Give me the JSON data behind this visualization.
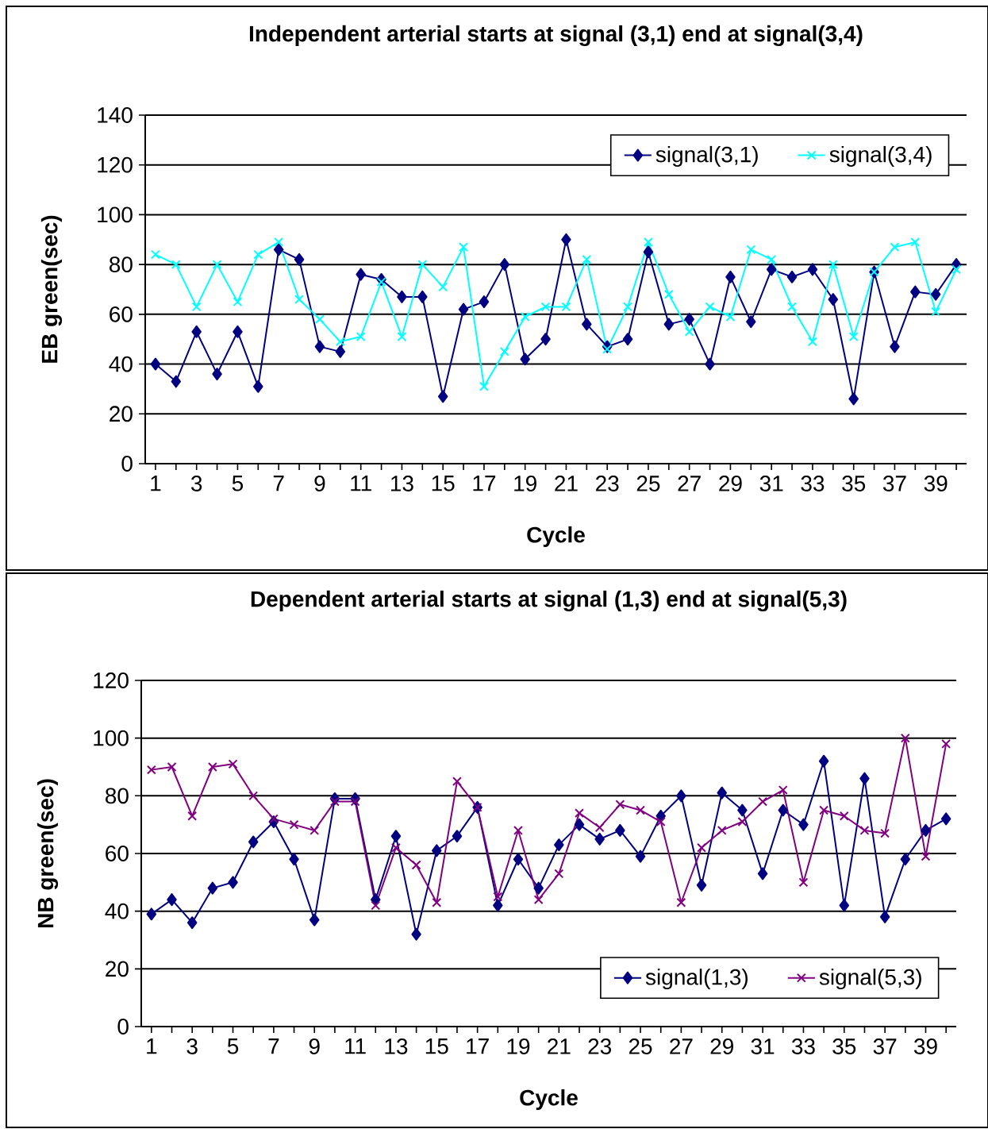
{
  "chart_data": [
    {
      "type": "line",
      "title": "Independent arterial starts at signal (3,1) end at signal(3,4)",
      "xlabel": "Cycle",
      "ylabel": "EB green(sec)",
      "categories": [
        "1",
        null,
        "3",
        null,
        "5",
        null,
        "7",
        null,
        "9",
        null,
        "11",
        null,
        "13",
        null,
        "15",
        null,
        "17",
        null,
        "19",
        null,
        "21",
        null,
        "23",
        null,
        "25",
        null,
        "27",
        null,
        "29",
        null,
        "31",
        null,
        "33",
        null,
        "35",
        null,
        "37",
        null,
        "39",
        null
      ],
      "series": [
        {
          "name": "signal(3,1)",
          "color": "#000080",
          "marker": "diamond",
          "values": [
            40,
            33,
            53,
            36,
            53,
            31,
            86,
            82,
            47,
            45,
            76,
            74,
            67,
            67,
            27,
            62,
            65,
            80,
            42,
            50,
            90,
            56,
            47,
            50,
            85,
            56,
            58,
            40,
            75,
            57,
            78,
            75,
            78,
            66,
            26,
            77,
            47,
            69,
            68,
            80
          ]
        },
        {
          "name": "signal(3,4)",
          "color": "#00ffff",
          "marker": "cross",
          "values": [
            84,
            80,
            63,
            80,
            65,
            84,
            89,
            66,
            58,
            49,
            51,
            73,
            51,
            80,
            71,
            87,
            31,
            45,
            59,
            63,
            63,
            82,
            46,
            63,
            89,
            68,
            53,
            63,
            59,
            86,
            82,
            63,
            49,
            80,
            51,
            77,
            87,
            89,
            61,
            78
          ]
        }
      ],
      "ylim": [
        0,
        140
      ],
      "yticks": [
        0,
        20,
        40,
        60,
        80,
        100,
        120,
        140
      ],
      "grid": "y",
      "legend": "top right"
    },
    {
      "type": "line",
      "title": "Dependent arterial starts at signal (1,3) end at signal(5,3)",
      "xlabel": "Cycle",
      "ylabel": "NB green(sec)",
      "categories": [
        "1",
        null,
        "3",
        null,
        "5",
        null,
        "7",
        null,
        "9",
        null,
        "11",
        null,
        "13",
        null,
        "15",
        null,
        "17",
        null,
        "19",
        null,
        "21",
        null,
        "23",
        null,
        "25",
        null,
        "27",
        null,
        "29",
        null,
        "31",
        null,
        "33",
        null,
        "35",
        null,
        "37",
        null,
        "39",
        null
      ],
      "series": [
        {
          "name": "signal(1,3)",
          "color": "#000080",
          "marker": "diamond",
          "values": [
            39,
            44,
            36,
            48,
            50,
            64,
            71,
            58,
            37,
            79,
            79,
            44,
            66,
            32,
            61,
            66,
            76,
            42,
            58,
            48,
            63,
            70,
            65,
            68,
            59,
            73,
            80,
            49,
            81,
            75,
            53,
            75,
            70,
            92,
            42,
            86,
            38,
            58,
            68,
            72
          ]
        },
        {
          "name": "signal(5,3)",
          "color": "#800080",
          "marker": "cross",
          "values": [
            89,
            90,
            73,
            90,
            91,
            80,
            72,
            70,
            68,
            78,
            78,
            42,
            62,
            56,
            43,
            85,
            76,
            45,
            68,
            44,
            53,
            74,
            69,
            77,
            75,
            71,
            43,
            62,
            68,
            71,
            78,
            82,
            50,
            75,
            73,
            68,
            67,
            100,
            59,
            98
          ]
        }
      ],
      "ylim": [
        0,
        120
      ],
      "yticks": [
        0,
        20,
        40,
        60,
        80,
        100,
        120
      ],
      "grid": "y",
      "legend": "bottom right"
    }
  ]
}
